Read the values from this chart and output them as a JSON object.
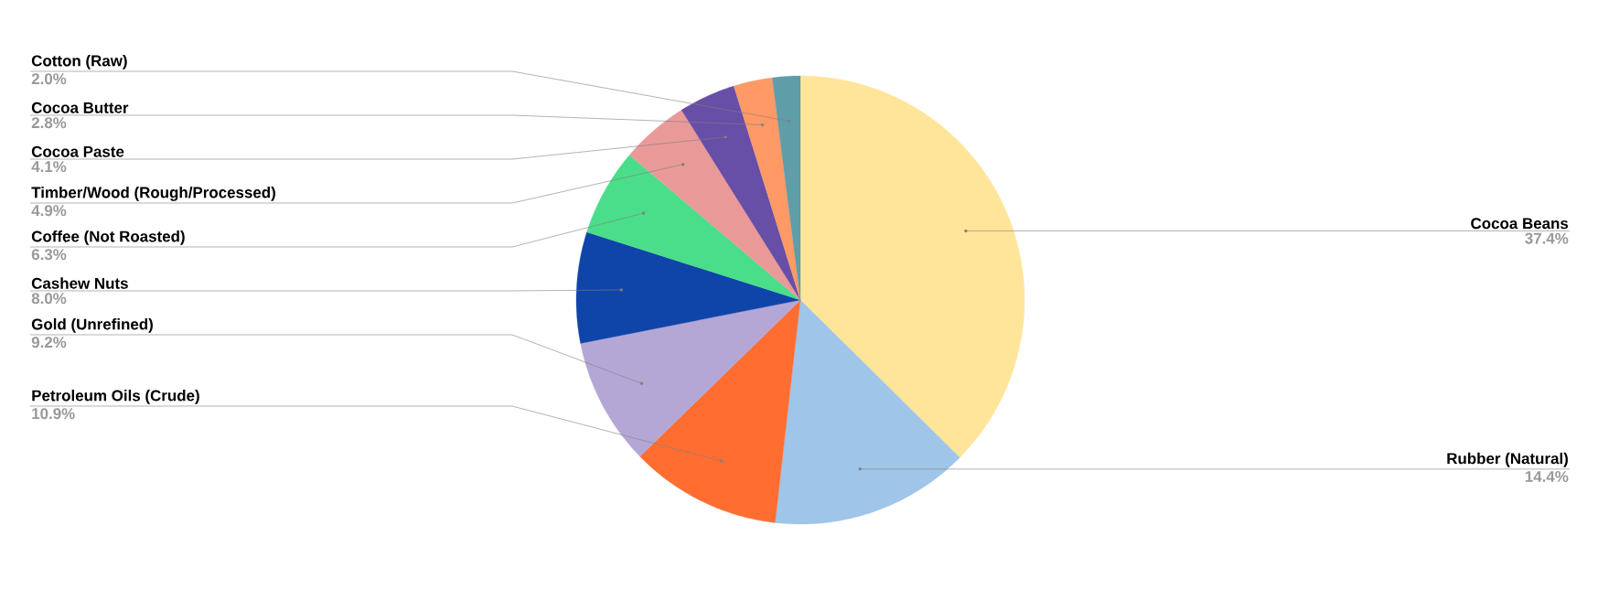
{
  "chart_data": {
    "type": "pie",
    "categories": [
      "Cocoa Beans",
      "Rubber (Natural)",
      "Petroleum Oils (Crude)",
      "Gold (Unrefined)",
      "Cashew Nuts",
      "Coffee (Not Roasted)",
      "Timber/Wood (Rough/Processed)",
      "Cocoa Paste",
      "Cocoa Butter",
      "Cotton (Raw)"
    ],
    "values": [
      37.4,
      14.4,
      10.9,
      9.2,
      8.0,
      6.3,
      4.9,
      4.1,
      2.8,
      2.0
    ],
    "value_labels": [
      "37.4%",
      "14.4%",
      "10.9%",
      "9.2%",
      "8.0%",
      "6.3%",
      "4.9%",
      "4.1%",
      "2.8%",
      "2.0%"
    ],
    "colors": [
      "#ffe599",
      "#9fc5e8",
      "#ff6d31",
      "#b4a7d6",
      "#0f45a8",
      "#4ade8a",
      "#ea9999",
      "#674ea7",
      "#ff9966",
      "#5f9ea8"
    ]
  }
}
